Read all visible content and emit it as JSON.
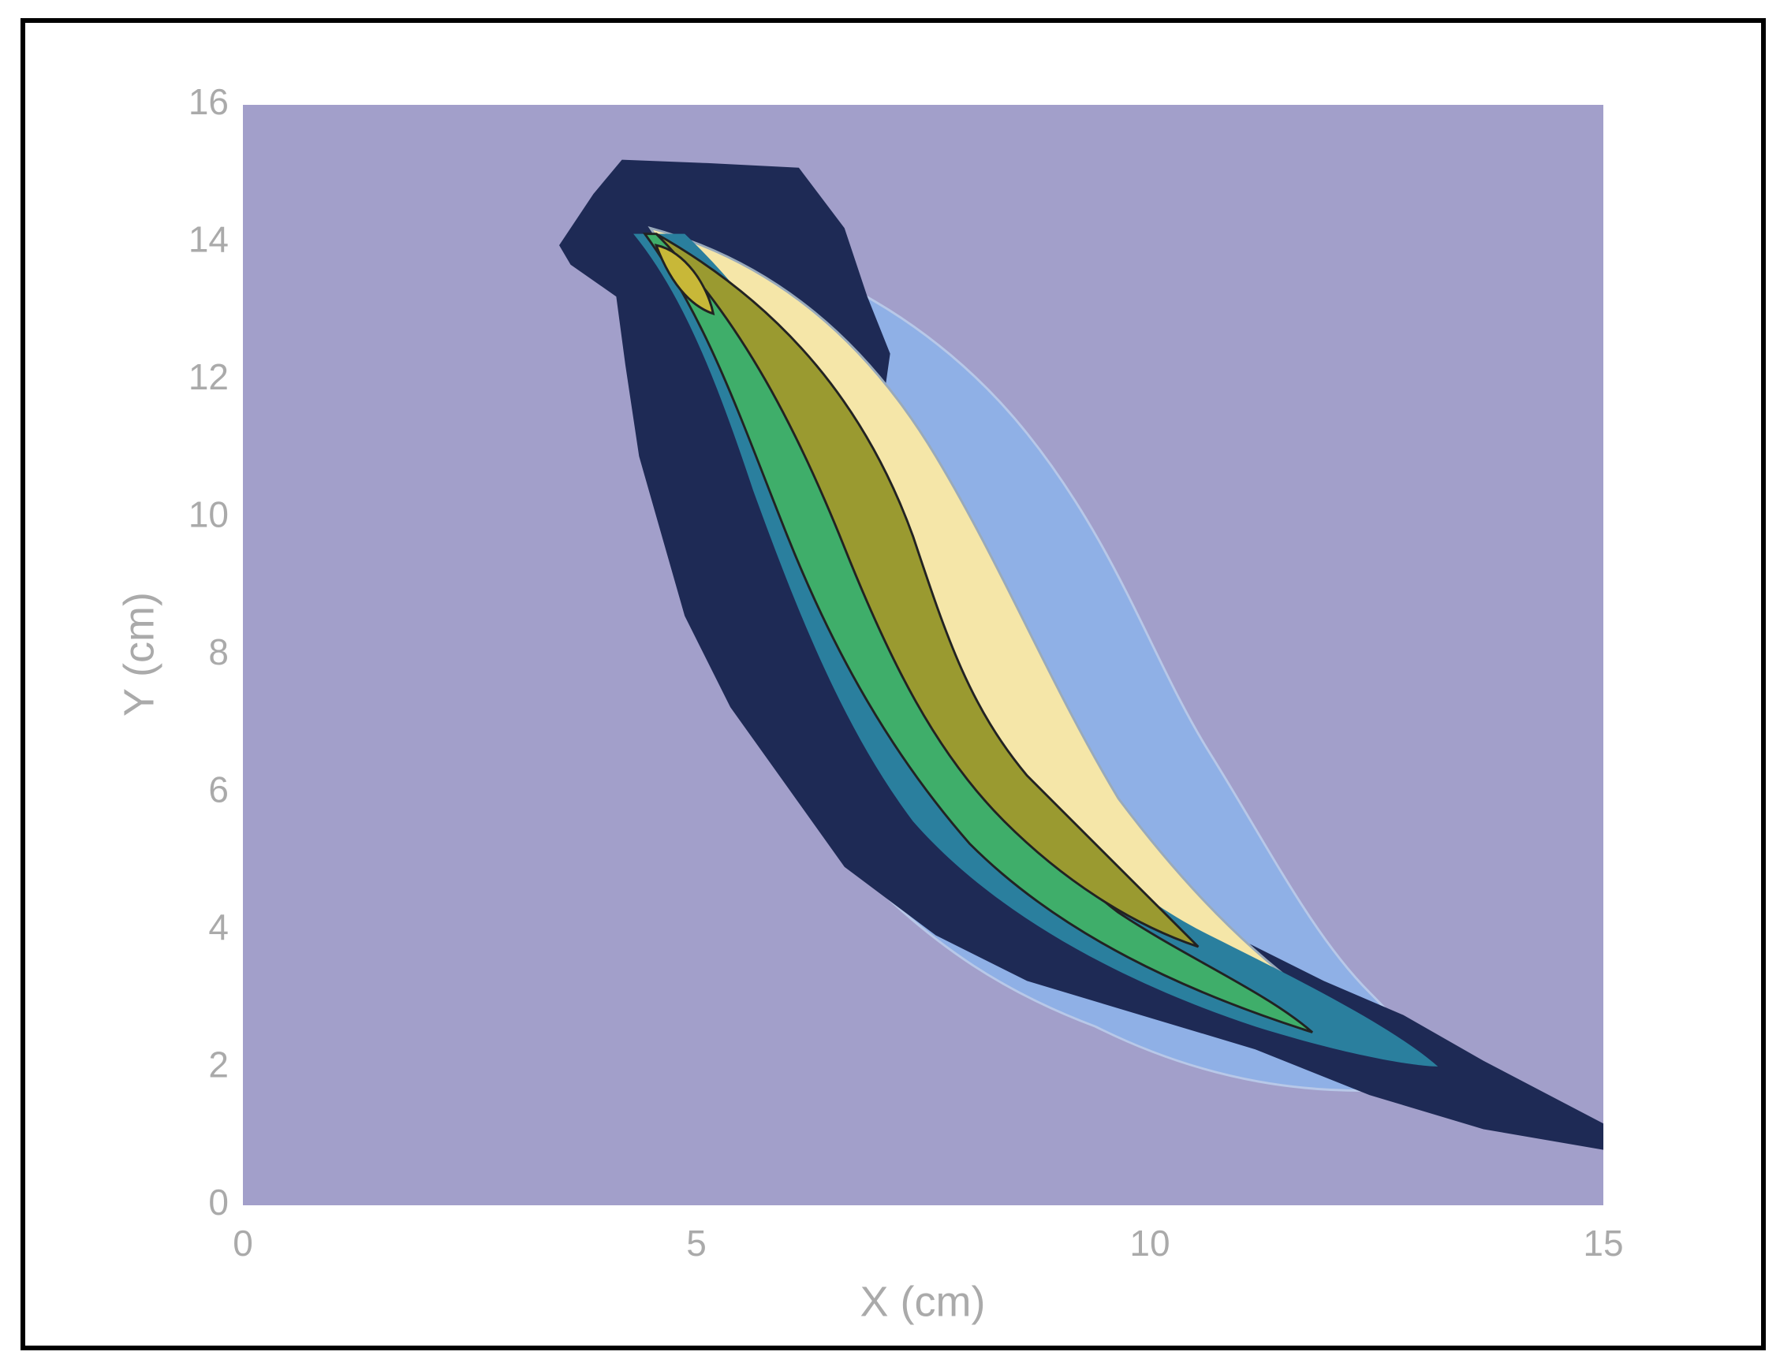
{
  "chart_data": {
    "type": "contour",
    "x_label": "X (cm)",
    "y_label": "Y (cm)",
    "xlim": [
      0,
      15
    ],
    "ylim": [
      0,
      16
    ],
    "xticks": [
      0,
      5,
      10,
      15
    ],
    "yticks": [
      0,
      2,
      4,
      6,
      8,
      10,
      12,
      14,
      16
    ],
    "background_color": "#a29fca"
  }
}
